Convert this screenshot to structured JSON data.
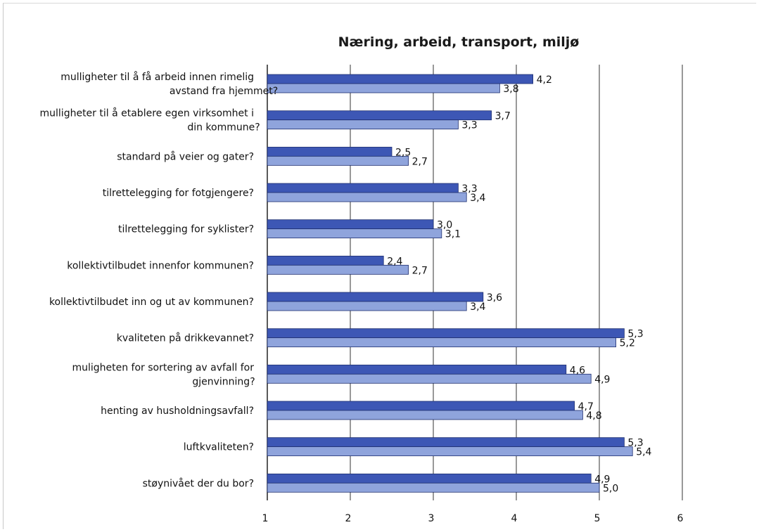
{
  "chart_data": {
    "type": "bar",
    "orientation": "horizontal",
    "title": "Næring, arbeid, transport, miljø",
    "xlim": [
      1,
      6
    ],
    "xticks": [
      "1",
      "2",
      "3",
      "4",
      "5",
      "6"
    ],
    "grid": "vertical major gridlines",
    "legend": "none",
    "categories": [
      [
        "mulligheter til å få arbeid innen rimelig",
        "avstand fra hjemmet?"
      ],
      [
        "mulligheter til å etablere egen virksomhet i",
        "din kommune?"
      ],
      [
        "standard på veier og gater?"
      ],
      [
        "tilrettelegging for fotgjengere?"
      ],
      [
        "tilrettelegging for syklister?"
      ],
      [
        "kollektivtilbudet innenfor kommunen?"
      ],
      [
        "kollektivtilbudet inn og ut av kommunen?"
      ],
      [
        "kvaliteten på drikkevannet?"
      ],
      [
        "muligheten for sortering av avfall for",
        "gjenvinning?"
      ],
      [
        "henting av husholdningsavfall?"
      ],
      [
        "luftkvaliteten?"
      ],
      [
        "støynivået der du bor?"
      ]
    ],
    "series": [
      {
        "values": [
          4.2,
          3.7,
          2.5,
          3.3,
          3.0,
          2.4,
          3.6,
          5.3,
          4.6,
          4.7,
          5.3,
          4.9
        ],
        "labels": [
          "4,2",
          "3,7",
          "2,5",
          "3,3",
          "3,0",
          "2,4",
          "3,6",
          "5,3",
          "4,6",
          "4,7",
          "5,3",
          "4,9"
        ],
        "color": "#3d57b5"
      },
      {
        "values": [
          3.8,
          3.3,
          2.7,
          3.4,
          3.1,
          2.7,
          3.4,
          5.2,
          4.9,
          4.8,
          5.4,
          5.0
        ],
        "labels": [
          "3,8",
          "3,3",
          "2,7",
          "3,4",
          "3,1",
          "2,7",
          "3,4",
          "5,2",
          "4,9",
          "4,8",
          "5,4",
          "5,0"
        ],
        "color": "#8fa4dc"
      }
    ]
  }
}
